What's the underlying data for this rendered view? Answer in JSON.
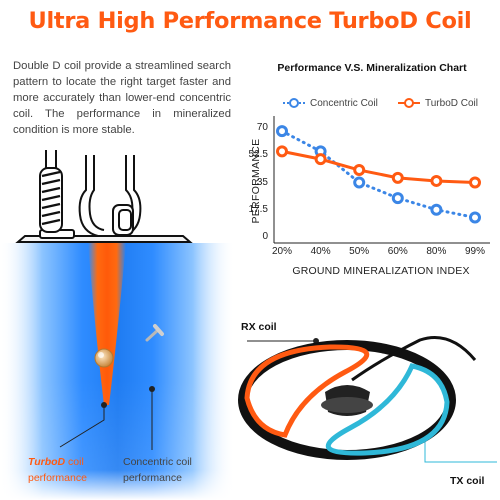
{
  "header": {
    "title": "Ultra High Performance TurboD Coil"
  },
  "description": "Double D coil provide a streamlined search pattern to locate the right target faster and more accurately than lower-end concentric coil. The performance in mineralized condition is more stable.",
  "colors": {
    "orange": "#ff5a12",
    "blue": "#3b86e6",
    "teal": "#2fb8d8"
  },
  "chart_data": {
    "type": "line",
    "title": "Performance V.S. Mineralization Chart",
    "xlabel": "GROUND MINERALIZATION INDEX",
    "ylabel": "PERFORMANCE",
    "categories": [
      "20%",
      "40%",
      "50%",
      "60%",
      "80%",
      "99%"
    ],
    "yticks": [
      "0",
      "17.5",
      "35",
      "52.5",
      "70"
    ],
    "ylim": [
      0,
      70
    ],
    "grid": false,
    "legend": "top",
    "series": [
      {
        "name": "Concentric Coil",
        "values": [
          68,
          55,
          35,
          25,
          17.5,
          12.5
        ],
        "color": "#3b86e6",
        "style": "dotted"
      },
      {
        "name": "TurboD Coil",
        "values": [
          55,
          50,
          43,
          38,
          36,
          35
        ],
        "color": "#ff5a12",
        "style": "solid"
      }
    ]
  },
  "illustration": {
    "turbod_label_a": "TurboD",
    "turbod_label_b": " coil",
    "turbod_label_c": "performance",
    "concentric_label_a": "Concentric coil",
    "concentric_label_b": "performance",
    "rx_label": "RX coil",
    "tx_label": "TX coil"
  }
}
